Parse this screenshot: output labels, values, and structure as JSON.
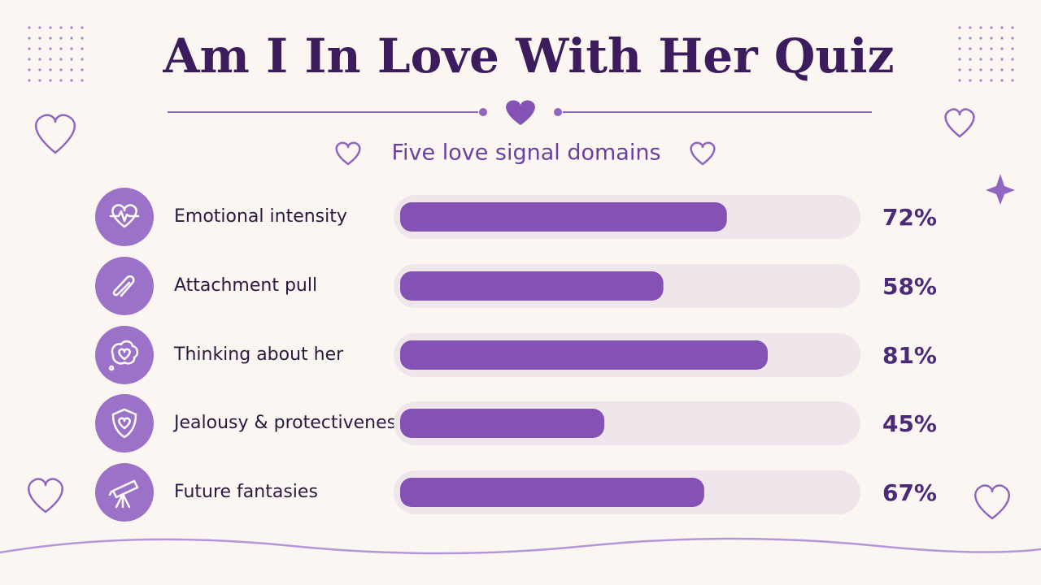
{
  "chart_data": {
    "type": "bar",
    "orientation": "horizontal",
    "title": "Am I In Love With Her Quiz",
    "subtitle": "Five love signal domains",
    "categories": [
      "Emotional intensity",
      "Attachment pull",
      "Thinking about her",
      "Jealousy & protectiveness",
      "Future fantasies"
    ],
    "values": [
      72,
      58,
      81,
      45,
      67
    ],
    "value_labels": [
      "72%",
      "58%",
      "81%",
      "45%",
      "67%"
    ],
    "color": "#8452b5",
    "xlim": [
      0,
      100
    ]
  }
}
